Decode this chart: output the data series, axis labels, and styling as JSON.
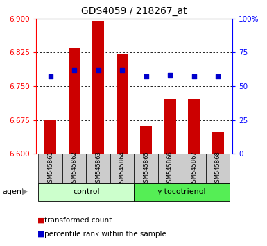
{
  "title": "GDS4059 / 218267_at",
  "samples": [
    "GSM545861",
    "GSM545862",
    "GSM545863",
    "GSM545864",
    "GSM545865",
    "GSM545866",
    "GSM545867",
    "GSM545868"
  ],
  "bar_values": [
    6.676,
    6.835,
    6.895,
    6.82,
    6.66,
    6.72,
    6.72,
    6.648
  ],
  "bar_base": 6.6,
  "dot_values": [
    57,
    62,
    62,
    62,
    57,
    58,
    57,
    57
  ],
  "ylim_left": [
    6.6,
    6.9
  ],
  "ylim_right": [
    0,
    100
  ],
  "yticks_left": [
    6.6,
    6.675,
    6.75,
    6.825,
    6.9
  ],
  "yticks_right": [
    0,
    25,
    50,
    75,
    100
  ],
  "ytick_labels_right": [
    "0",
    "25",
    "50",
    "75",
    "100%"
  ],
  "bar_color": "#cc0000",
  "dot_color": "#0000cc",
  "control_label": "control",
  "treatment_label": "γ-tocotrienol",
  "agent_label": "agent",
  "legend_bar": "transformed count",
  "legend_dot": "percentile rank within the sample",
  "control_bg": "#ccffcc",
  "treatment_bg": "#55ee55",
  "sample_bg": "#cccccc",
  "bar_width": 0.5,
  "arrow_color": "#888888"
}
